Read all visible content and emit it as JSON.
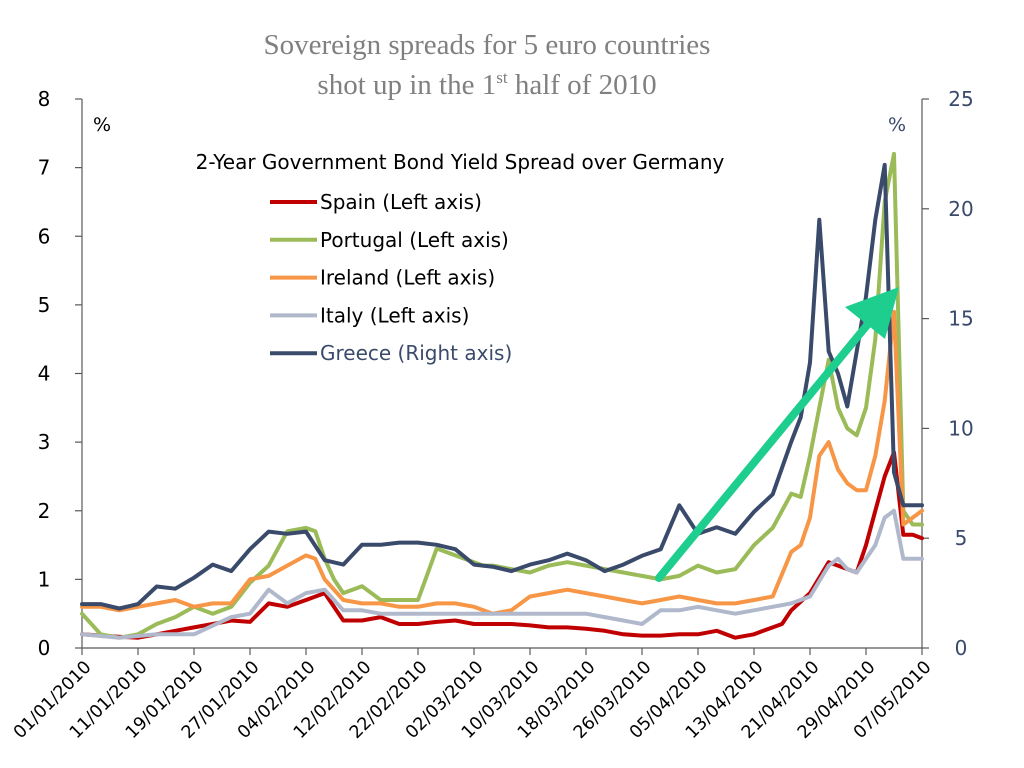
{
  "slide": {
    "title_line1": "Sovereign spreads for 5 euro countries",
    "title_line2_pre": "shot up in the 1",
    "title_line2_sup": "st",
    "title_line2_post": " half of 2010"
  },
  "chart_data": {
    "type": "line",
    "title": "2-Year Government Bond Yield Spread over Germany",
    "left_axis": {
      "unit": "%",
      "range": [
        0,
        8
      ],
      "ticks": [
        "0",
        "1",
        "2",
        "3",
        "4",
        "5",
        "6",
        "7",
        "8"
      ]
    },
    "right_axis": {
      "unit": "%",
      "range": [
        0,
        25
      ],
      "ticks": [
        "0",
        "5",
        "10",
        "15",
        "20",
        "25"
      ]
    },
    "x_ticks": [
      "01/01/2010",
      "11/01/2010",
      "19/01/2010",
      "27/01/2010",
      "04/02/2010",
      "12/02/2010",
      "22/02/2010",
      "02/03/2010",
      "10/03/2010",
      "18/03/2010",
      "26/03/2010",
      "05/04/2010",
      "13/04/2010",
      "21/04/2010",
      "29/04/2010",
      "07/05/2010"
    ],
    "x_range": [
      0,
      90
    ],
    "legend": "top-center",
    "grid": false,
    "annotation": "green arrow pointing up-right from early April 2010 to early May 2010",
    "series": [
      {
        "name": "Spain (Left axis)",
        "axis": "left",
        "color": "#c00000",
        "x": [
          0,
          3,
          6,
          8,
          10,
          12,
          14,
          16,
          18,
          20,
          22,
          24,
          26,
          28,
          30,
          32,
          34,
          36,
          38,
          40,
          42,
          44,
          46,
          48,
          50,
          52,
          54,
          56,
          58,
          60,
          62,
          64,
          66,
          68,
          70,
          72,
          73,
          74,
          75,
          76,
          78,
          80,
          81,
          82,
          83,
          84,
          85,
          86,
          87,
          88,
          89,
          90
        ],
        "y": [
          0.2,
          0.17,
          0.15,
          0.2,
          0.25,
          0.3,
          0.35,
          0.4,
          0.38,
          0.65,
          0.6,
          0.7,
          0.8,
          0.4,
          0.4,
          0.45,
          0.35,
          0.35,
          0.38,
          0.4,
          0.35,
          0.35,
          0.35,
          0.33,
          0.3,
          0.3,
          0.28,
          0.25,
          0.2,
          0.18,
          0.18,
          0.2,
          0.2,
          0.25,
          0.15,
          0.2,
          0.25,
          0.3,
          0.35,
          0.55,
          0.8,
          1.25,
          1.2,
          1.15,
          1.1,
          1.5,
          2.0,
          2.5,
          2.85,
          1.65,
          1.65,
          1.6
        ]
      },
      {
        "name": "Portugal (Left axis)",
        "axis": "left",
        "color": "#9bbb59",
        "x": [
          0,
          2,
          4,
          6,
          8,
          10,
          12,
          14,
          16,
          18,
          20,
          22,
          24,
          25,
          26,
          27,
          28,
          30,
          32,
          34,
          36,
          38,
          40,
          42,
          43,
          44,
          46,
          48,
          50,
          52,
          54,
          56,
          58,
          60,
          62,
          64,
          66,
          68,
          70,
          72,
          74,
          76,
          77,
          78,
          79,
          80,
          81,
          82,
          83,
          84,
          85,
          86,
          87,
          88,
          89,
          90
        ],
        "y": [
          0.5,
          0.2,
          0.15,
          0.2,
          0.35,
          0.45,
          0.6,
          0.5,
          0.6,
          0.95,
          1.2,
          1.7,
          1.75,
          1.7,
          1.3,
          1.0,
          0.8,
          0.9,
          0.7,
          0.7,
          0.7,
          1.45,
          1.35,
          1.25,
          1.2,
          1.2,
          1.15,
          1.1,
          1.2,
          1.25,
          1.2,
          1.15,
          1.1,
          1.05,
          1.0,
          1.05,
          1.2,
          1.1,
          1.15,
          1.5,
          1.75,
          2.25,
          2.2,
          2.8,
          3.5,
          4.2,
          3.5,
          3.2,
          3.1,
          3.5,
          4.5,
          6.5,
          7.2,
          2.0,
          1.8,
          1.8
        ]
      },
      {
        "name": "Ireland (Left axis)",
        "axis": "left",
        "color": "#f79646",
        "x": [
          0,
          2,
          4,
          6,
          8,
          10,
          12,
          14,
          16,
          18,
          20,
          22,
          24,
          25,
          26,
          28,
          30,
          32,
          34,
          36,
          38,
          40,
          42,
          44,
          46,
          48,
          50,
          52,
          54,
          56,
          58,
          60,
          62,
          64,
          66,
          68,
          70,
          72,
          74,
          76,
          77,
          78,
          79,
          80,
          81,
          82,
          83,
          84,
          85,
          86,
          87,
          88,
          89,
          90
        ],
        "y": [
          0.6,
          0.6,
          0.55,
          0.6,
          0.65,
          0.7,
          0.6,
          0.65,
          0.65,
          1.0,
          1.05,
          1.2,
          1.35,
          1.3,
          1.0,
          0.7,
          0.65,
          0.65,
          0.6,
          0.6,
          0.65,
          0.65,
          0.6,
          0.5,
          0.55,
          0.75,
          0.8,
          0.85,
          0.8,
          0.75,
          0.7,
          0.65,
          0.7,
          0.75,
          0.7,
          0.65,
          0.65,
          0.7,
          0.75,
          1.4,
          1.5,
          1.9,
          2.8,
          3.0,
          2.6,
          2.4,
          2.3,
          2.3,
          2.8,
          3.6,
          4.9,
          1.8,
          1.9,
          2.0
        ]
      },
      {
        "name": "Italy (Left axis)",
        "axis": "left",
        "color": "#b0b8cc",
        "x": [
          0,
          4,
          8,
          12,
          16,
          18,
          20,
          22,
          24,
          26,
          28,
          30,
          32,
          34,
          36,
          38,
          40,
          42,
          44,
          46,
          48,
          50,
          52,
          54,
          56,
          58,
          60,
          62,
          64,
          66,
          68,
          70,
          72,
          74,
          76,
          78,
          80,
          81,
          82,
          83,
          84,
          85,
          86,
          87,
          88,
          89,
          90
        ],
        "y": [
          0.2,
          0.15,
          0.2,
          0.2,
          0.45,
          0.5,
          0.85,
          0.65,
          0.8,
          0.85,
          0.55,
          0.55,
          0.5,
          0.5,
          0.5,
          0.5,
          0.5,
          0.5,
          0.5,
          0.5,
          0.5,
          0.5,
          0.5,
          0.5,
          0.45,
          0.4,
          0.35,
          0.55,
          0.55,
          0.6,
          0.55,
          0.5,
          0.55,
          0.6,
          0.65,
          0.75,
          1.2,
          1.3,
          1.15,
          1.1,
          1.3,
          1.5,
          1.9,
          2.0,
          1.3,
          1.3,
          1.3
        ]
      },
      {
        "name": "Greece (Right axis)",
        "axis": "right",
        "color": "#3a4a6b",
        "x": [
          0,
          2,
          4,
          6,
          8,
          10,
          12,
          14,
          16,
          18,
          20,
          22,
          24,
          26,
          28,
          30,
          32,
          34,
          36,
          38,
          40,
          42,
          44,
          46,
          48,
          50,
          52,
          54,
          56,
          58,
          60,
          62,
          64,
          66,
          68,
          70,
          72,
          74,
          76,
          77,
          78,
          79,
          80,
          81,
          82,
          83,
          84,
          85,
          86,
          87,
          88,
          89,
          90
        ],
        "y": [
          2,
          2,
          1.8,
          2,
          2.8,
          2.7,
          3.2,
          3.8,
          3.5,
          4.5,
          5.3,
          5.2,
          5.3,
          4.0,
          3.8,
          4.7,
          4.7,
          4.8,
          4.8,
          4.7,
          4.5,
          3.8,
          3.7,
          3.5,
          3.8,
          4.0,
          4.3,
          4.0,
          3.5,
          3.8,
          4.2,
          4.5,
          6.5,
          5.2,
          5.5,
          5.2,
          6.2,
          7.0,
          9.4,
          10.5,
          13.0,
          19.5,
          13.5,
          12.5,
          11.0,
          13.5,
          16.0,
          19.5,
          22.0,
          8.0,
          6.5,
          6.5,
          6.5
        ]
      }
    ]
  }
}
